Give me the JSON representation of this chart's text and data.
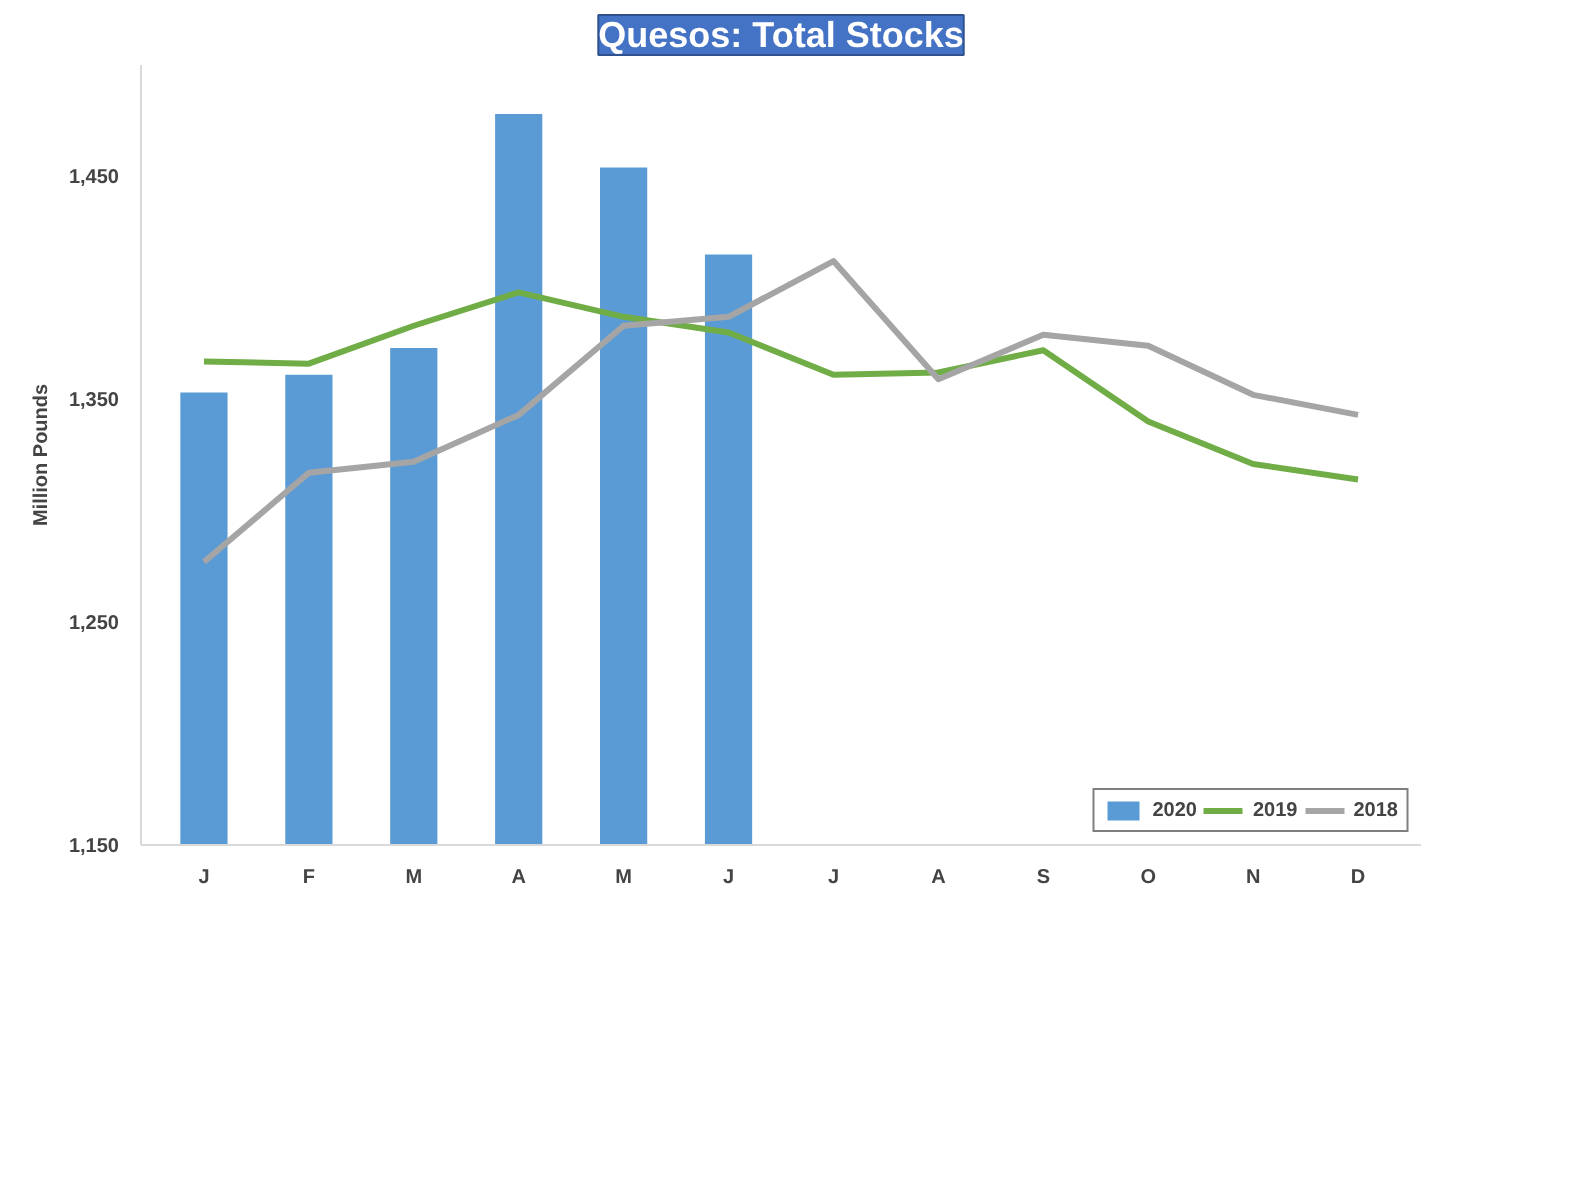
{
  "chart_data": {
    "type": "bar",
    "title": "Quesos: Total Stocks",
    "ylabel": "Million Pounds",
    "categories": [
      "J",
      "F",
      "M",
      "A",
      "M",
      "J",
      "J",
      "A",
      "S",
      "O",
      "N",
      "D"
    ],
    "series": [
      {
        "name": "2020",
        "color": "#5b9bd5",
        "values": [
          1353,
          1361,
          1373,
          1478,
          1454,
          1415,
          null,
          null,
          null,
          null,
          null,
          null
        ]
      },
      {
        "name": "2019",
        "type": "line",
        "color": "#70ad47",
        "values": [
          1367,
          1366,
          1383,
          1398,
          1387,
          1380,
          1361,
          1362,
          1372,
          1340,
          1321,
          1314
        ]
      },
      {
        "name": "2018",
        "type": "line",
        "color": "#a5a5a5",
        "values": [
          1277,
          1317,
          1322,
          1343,
          1383,
          1387,
          1412,
          1359,
          1379,
          1374,
          1352,
          1343
        ]
      }
    ],
    "ylim": [
      1150,
      1500
    ],
    "yticks": [
      {
        "value": 1150,
        "label": "1,150"
      },
      {
        "value": 1250,
        "label": "1,250"
      },
      {
        "value": 1350,
        "label": "1,350"
      },
      {
        "value": 1450,
        "label": "1,450"
      }
    ],
    "grid": false,
    "legend": "bottom right",
    "line_style": "solid",
    "marker": "none"
  }
}
